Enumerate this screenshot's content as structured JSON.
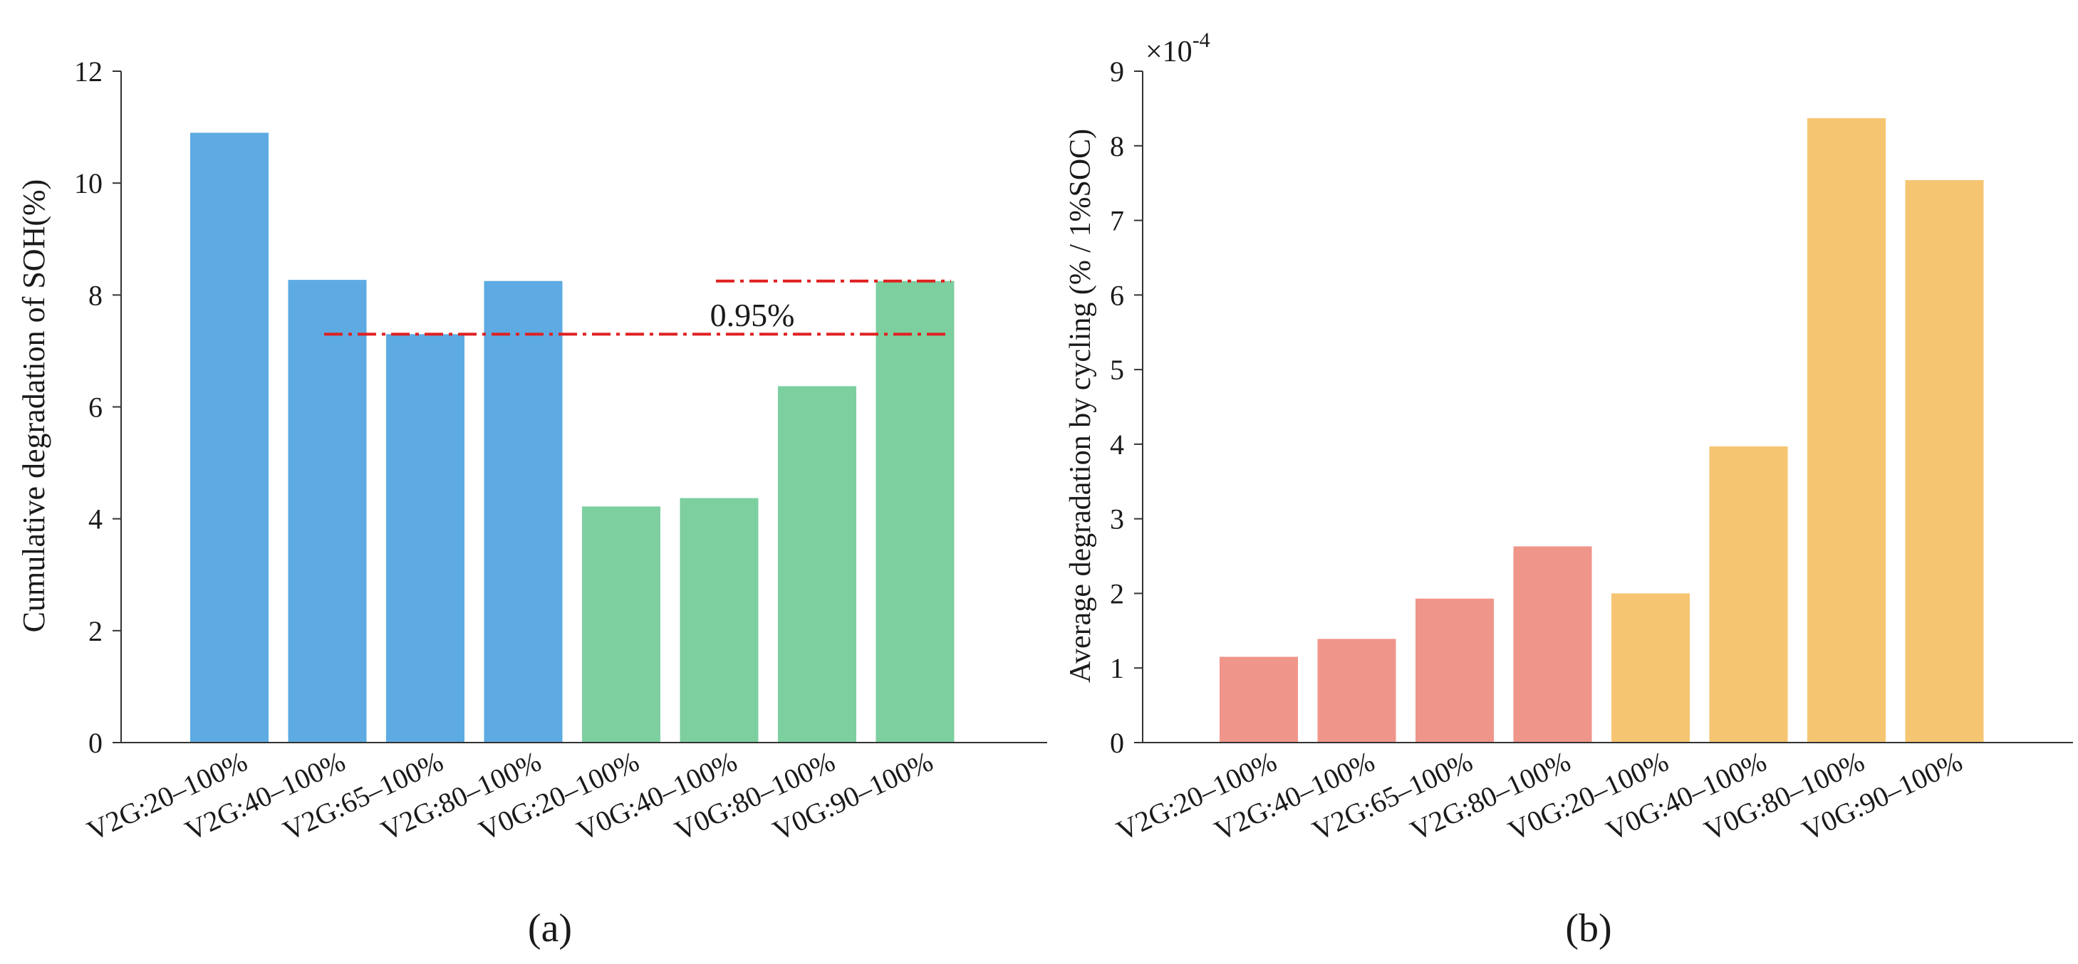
{
  "colors": {
    "left_v2g": "#5DABE2",
    "left_v0g": "#7DCFA0",
    "right_v2g": "#F0958A",
    "right_v0g": "#F6C572",
    "reference": "#E02020"
  },
  "chart_data": [
    {
      "type": "bar",
      "panel_label": "(a)",
      "ylabel": "Cumulative degradation of SOH(%)",
      "ylim": [
        0,
        12
      ],
      "yticks": [
        "0",
        "2",
        "4",
        "6",
        "8",
        "10",
        "12"
      ],
      "categories": [
        "V2G:20–100%",
        "V2G:40–100%",
        "V2G:65–100%",
        "V2G:80–100%",
        "V0G:20–100%",
        "V0G:40–100%",
        "V0G:80–100%",
        "V0G:90–100%"
      ],
      "values": [
        10.9,
        8.27,
        7.3,
        8.25,
        4.22,
        4.37,
        6.37,
        8.25
      ],
      "groups": [
        "V2G",
        "V2G",
        "V2G",
        "V2G",
        "V0G",
        "V0G",
        "V0G",
        "V0G"
      ],
      "reference_lines": [
        {
          "y": 7.3,
          "style": "dash-dot"
        },
        {
          "y": 8.25,
          "style": "dash-dot"
        }
      ],
      "annotation": "0.95%"
    },
    {
      "type": "bar",
      "panel_label": "(b)",
      "ylabel": "Average degradation by cycling (% / 1%SOC)",
      "scale_label": "×10",
      "scale_exponent": "-4",
      "ylim": [
        0,
        9
      ],
      "yticks": [
        "0",
        "1",
        "2",
        "3",
        "4",
        "5",
        "6",
        "7",
        "8",
        "9"
      ],
      "categories": [
        "V2G:20–100%",
        "V2G:40–100%",
        "V2G:65–100%",
        "V2G:80–100%",
        "V0G:20–100%",
        "V0G:40–100%",
        "V0G:80–100%",
        "V0G:90–100%"
      ],
      "values": [
        1.15,
        1.39,
        1.93,
        2.63,
        2.0,
        3.97,
        8.37,
        7.54
      ],
      "groups": [
        "V2G",
        "V2G",
        "V2G",
        "V2G",
        "V0G",
        "V0G",
        "V0G",
        "V0G"
      ]
    }
  ]
}
